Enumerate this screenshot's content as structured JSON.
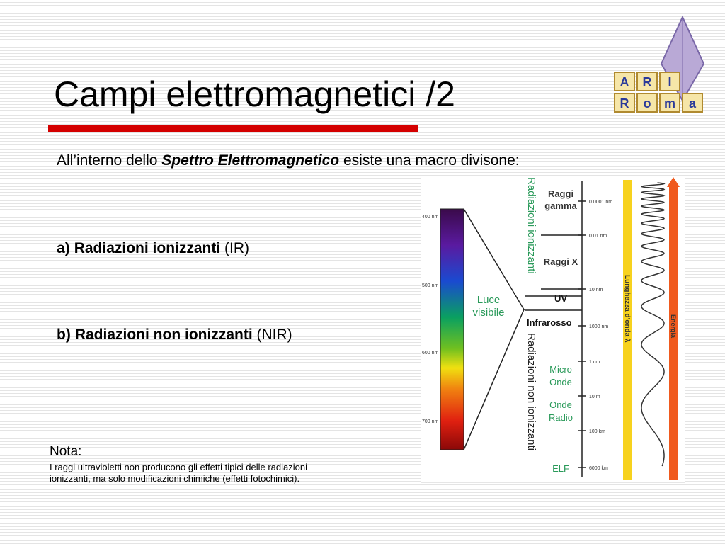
{
  "header": {
    "title": "Campi elettromagnetici /2"
  },
  "logo": {
    "top": [
      "A",
      "R",
      "I"
    ],
    "bottom": [
      "R",
      "o",
      "m",
      "a"
    ]
  },
  "intro": {
    "before": "All’interno dello ",
    "emphasis": "Spettro Elettromagnetico",
    "after": " esiste una macro divisone:"
  },
  "items": [
    {
      "marker": "a)",
      "bold": "Radiazioni ionizzanti",
      "suffix": "(IR)"
    },
    {
      "marker": "b)",
      "bold": "Radiazioni non ionizzanti",
      "suffix": "(NIR)"
    }
  ],
  "note": {
    "label": "Nota:",
    "lines": [
      "I raggi ultravioletti non producono gli effetti tipici delle radiazioni",
      "ionizzanti, ma solo modificazioni chimiche (effetti fotochimici)."
    ]
  },
  "diagram": {
    "wavelengths": [
      "400 nm",
      "500 nm",
      "600 nm",
      "700 nm"
    ],
    "visible": [
      "Luce",
      "visibile"
    ],
    "ionizing": "Radiazioni ionizzanti",
    "non_ionizing": "Radiazioni non ionizzanti",
    "bands": [
      [
        "Raggi",
        "gamma"
      ],
      [
        "Raggi X"
      ],
      [
        "UV"
      ],
      [
        "Infrarosso"
      ],
      [
        "Micro",
        "Onde"
      ],
      [
        "Onde",
        "Radio"
      ],
      [
        "ELF"
      ]
    ],
    "scale": [
      "0.0001 nm",
      "0.01 nm",
      "10 nm",
      "1000 nm",
      "1 cm",
      "10 m",
      "100 km",
      "6000 km"
    ],
    "wavelength_axis": "Lunghezza d’onda λ",
    "energy_axis": "Energia"
  }
}
